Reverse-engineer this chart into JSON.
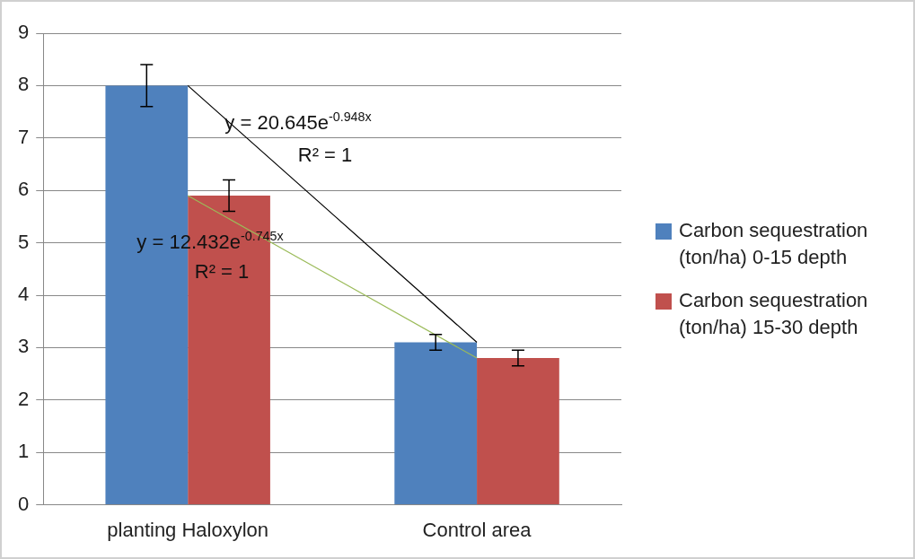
{
  "chart_data": {
    "type": "bar",
    "categories": [
      "planting Haloxylon",
      "Control area"
    ],
    "series": [
      {
        "name": "Carbon sequestration (ton/ha) 0-15 depth",
        "color": "#4f81bd",
        "values": [
          8.0,
          3.1
        ],
        "errors": [
          0.4,
          0.15
        ]
      },
      {
        "name": "Carbon sequestration (ton/ha) 15-30 depth",
        "color": "#c0504d",
        "values": [
          5.9,
          2.8
        ],
        "errors": [
          0.3,
          0.15
        ]
      },
      {
        "type": "line",
        "color": "#000000",
        "x": [
          "planting Haloxylon",
          "Control area"
        ],
        "values": [
          8.0,
          3.1
        ]
      },
      {
        "type": "line",
        "color": "#9bbb59",
        "x": [
          "planting Haloxylon",
          "Control area"
        ],
        "values": [
          5.9,
          2.8
        ]
      }
    ],
    "ylim": [
      0,
      9
    ],
    "yticks": [
      0,
      1,
      2,
      3,
      4,
      5,
      6,
      7,
      8,
      9
    ],
    "grid": "y",
    "legend": "right",
    "annotations": [
      "y = 20.645e$^{-0.948x}$",
      "R² = 1",
      "y = 12.432e$^{-0.745x}$",
      "R² = 1"
    ]
  }
}
